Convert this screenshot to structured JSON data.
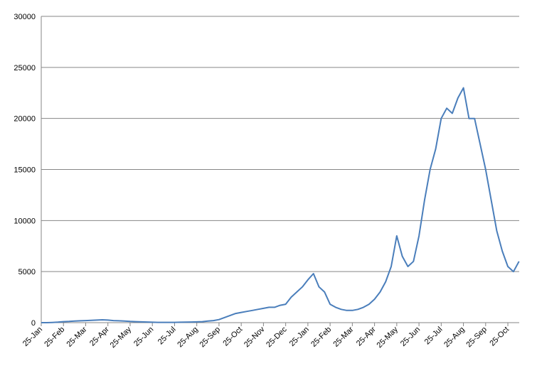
{
  "chart_data": {
    "type": "line",
    "categories": [
      "25-Jan",
      null,
      null,
      null,
      "25-Feb",
      null,
      null,
      null,
      "25-Mar",
      null,
      null,
      null,
      "25-Apr",
      null,
      null,
      null,
      "25-May",
      null,
      null,
      null,
      "25-Jun",
      null,
      null,
      null,
      "25-Jul",
      null,
      null,
      null,
      "25-Aug",
      null,
      null,
      null,
      "25-Sep",
      null,
      null,
      null,
      "25-Oct",
      null,
      null,
      null,
      "25-Nov",
      null,
      null,
      null,
      "25-Dec",
      null,
      null,
      null,
      "25-Jan",
      null,
      null,
      null,
      "25-Feb",
      null,
      null,
      null,
      "25-Mar",
      null,
      null,
      null,
      "25-Apr",
      null,
      null,
      null,
      "25-May",
      null,
      null,
      null,
      "25-Jun",
      null,
      null,
      null,
      "25-Jul",
      null,
      null,
      null,
      "25-Aug",
      null,
      null,
      null,
      "25-Sep",
      null,
      null,
      null,
      "25-Oct",
      null,
      null
    ],
    "series": [
      {
        "color": "#4a7ebb",
        "values": [
          0,
          0,
          20,
          50,
          100,
          120,
          150,
          180,
          200,
          220,
          250,
          280,
          250,
          200,
          180,
          150,
          120,
          100,
          80,
          60,
          40,
          30,
          30,
          30,
          30,
          40,
          50,
          60,
          80,
          100,
          150,
          200,
          300,
          500,
          700,
          900,
          1000,
          1100,
          1200,
          1300,
          1400,
          1500,
          1500,
          1700,
          1800,
          2500,
          3000,
          3500,
          4200,
          4800,
          3500,
          3000,
          1800,
          1500,
          1300,
          1200,
          1200,
          1300,
          1500,
          1800,
          2300,
          3000,
          4000,
          5500,
          8500,
          6500,
          5500,
          6000,
          8500,
          12000,
          15000,
          17000,
          20000,
          21000,
          20500,
          22000,
          23000,
          20000,
          20000,
          17500,
          15000,
          12000,
          9000,
          7000,
          5500,
          5000,
          6000
        ]
      }
    ],
    "ylim": [
      0,
      30000
    ],
    "yticks": [
      0,
      5000,
      10000,
      15000,
      20000,
      25000,
      30000
    ],
    "grid": true
  }
}
